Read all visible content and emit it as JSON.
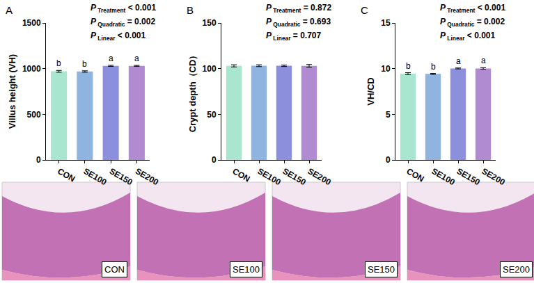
{
  "chart_data": [
    {
      "type": "bar",
      "panel": "A",
      "y_label": "Villus height (VH)",
      "categories": [
        "CON",
        "SE100",
        "SE150",
        "SE200"
      ],
      "values": [
        970,
        968,
        1030,
        1030
      ],
      "error": [
        10,
        8,
        6,
        5
      ],
      "significance": [
        "b",
        "b",
        "a",
        "a"
      ],
      "colors": [
        "#a8e6cf",
        "#8fb4e0",
        "#8c90dc",
        "#b18bd2"
      ],
      "ylim": [
        0,
        1500
      ],
      "yticks": [
        0,
        500,
        1000,
        1500
      ],
      "stats_symbol": "P",
      "stats": [
        {
          "name": "Treatment",
          "value": "< 0.001"
        },
        {
          "name": "Quadratic",
          "value": "= 0.002"
        },
        {
          "name": "Linear",
          "value": "< 0.001"
        }
      ],
      "grid": false
    },
    {
      "type": "bar",
      "panel": "B",
      "y_label": "Crypt depth（CD）",
      "categories": [
        "CON",
        "SE100",
        "SE150",
        "SE200"
      ],
      "values": [
        103,
        103.2,
        103.1,
        103
      ],
      "error": [
        1.2,
        1.0,
        0.8,
        1.5
      ],
      "colors": [
        "#a8e6cf",
        "#8fb4e0",
        "#8c90dc",
        "#b18bd2"
      ],
      "ylim": [
        0,
        150
      ],
      "yticks": [
        0,
        50,
        100,
        150
      ],
      "stats_symbol": "P",
      "stats": [
        {
          "name": "Treatment",
          "value": "= 0.872"
        },
        {
          "name": "Quadratic",
          "value": "= 0.693"
        },
        {
          "name": "Linear",
          "value": "= 0.707"
        }
      ],
      "grid": false
    },
    {
      "type": "bar",
      "panel": "C",
      "y_label": "VH/CD",
      "categories": [
        "CON",
        "SE100",
        "SE150",
        "SE200"
      ],
      "values": [
        9.45,
        9.42,
        10.02,
        10.02
      ],
      "error": [
        0.1,
        0.06,
        0.05,
        0.08
      ],
      "significance": [
        "b",
        "b",
        "a",
        "a"
      ],
      "colors": [
        "#a8e6cf",
        "#8fb4e0",
        "#8c90dc",
        "#b18bd2"
      ],
      "ylim": [
        0,
        15
      ],
      "yticks": [
        0,
        5,
        10,
        15
      ],
      "stats_symbol": "P",
      "stats": [
        {
          "name": "Treatment",
          "value": "< 0.001"
        },
        {
          "name": "Quadratic",
          "value": "= 0.002"
        },
        {
          "name": "Linear",
          "value": "< 0.001"
        }
      ],
      "grid": false
    }
  ],
  "image_labels": [
    "CON",
    "SE100",
    "SE150",
    "SE200"
  ]
}
